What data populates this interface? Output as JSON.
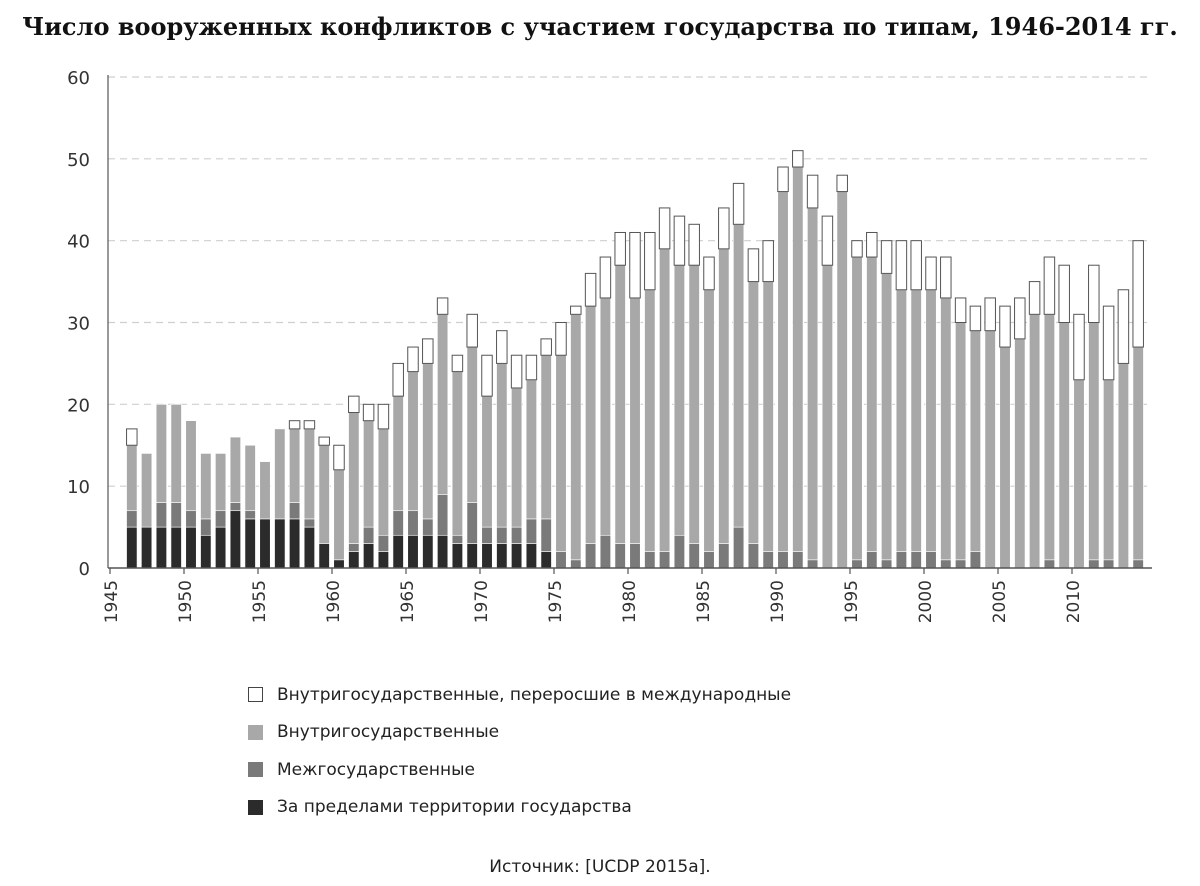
{
  "chart_data": {
    "type": "bar",
    "stacked": true,
    "title": "Число вооруженных конфликтов с участием государства по типам, 1946-2014 гг.",
    "source": "Источник: [UCDP 2015a].",
    "ylim": [
      0,
      60
    ],
    "yticks": [
      0,
      10,
      20,
      30,
      40,
      50,
      60
    ],
    "xlim": [
      1945,
      2014
    ],
    "xticks": [
      1945,
      1950,
      1955,
      1960,
      1965,
      1970,
      1975,
      1980,
      1985,
      1990,
      1995,
      2000,
      2005,
      2010
    ],
    "grid": true,
    "legend_position": "bottom",
    "x": [
      1946,
      1947,
      1948,
      1949,
      1950,
      1951,
      1952,
      1953,
      1954,
      1955,
      1956,
      1957,
      1958,
      1959,
      1960,
      1961,
      1962,
      1963,
      1964,
      1965,
      1966,
      1967,
      1968,
      1969,
      1970,
      1971,
      1972,
      1973,
      1974,
      1975,
      1976,
      1977,
      1978,
      1979,
      1980,
      1981,
      1982,
      1983,
      1984,
      1985,
      1986,
      1987,
      1988,
      1989,
      1990,
      1991,
      1992,
      1993,
      1994,
      1995,
      1996,
      1997,
      1998,
      1999,
      2000,
      2001,
      2002,
      2003,
      2004,
      2005,
      2006,
      2007,
      2008,
      2009,
      2010,
      2011,
      2012,
      2013,
      2014
    ],
    "series": [
      {
        "name": "За пределами территории государства",
        "color": "#2b2b2b",
        "values": [
          5,
          5,
          5,
          5,
          5,
          4,
          5,
          7,
          6,
          6,
          6,
          6,
          5,
          3,
          1,
          2,
          3,
          2,
          4,
          4,
          4,
          4,
          3,
          3,
          3,
          3,
          3,
          3,
          2,
          0,
          0,
          0,
          0,
          0,
          0,
          0,
          0,
          0,
          0,
          0,
          0,
          0,
          0,
          0,
          0,
          0,
          0,
          0,
          0,
          0,
          0,
          0,
          0,
          0,
          0,
          0,
          0,
          0,
          0,
          0,
          0,
          0,
          0,
          0,
          0,
          0,
          0,
          0,
          0
        ]
      },
      {
        "name": "Межгосударственные",
        "color": "#7a7a7a",
        "values": [
          2,
          0,
          3,
          3,
          2,
          2,
          2,
          1,
          1,
          0,
          0,
          2,
          1,
          0,
          0,
          1,
          2,
          2,
          3,
          3,
          2,
          5,
          1,
          5,
          2,
          2,
          2,
          3,
          4,
          2,
          1,
          3,
          4,
          3,
          3,
          2,
          2,
          4,
          3,
          2,
          3,
          5,
          3,
          2,
          2,
          2,
          1,
          0,
          0,
          1,
          2,
          1,
          2,
          2,
          2,
          1,
          1,
          2,
          0,
          0,
          0,
          0,
          1,
          0,
          0,
          1,
          1,
          0,
          1
        ]
      },
      {
        "name": "Внутригосударственные",
        "color": "#a8a8a8",
        "values": [
          8,
          9,
          12,
          12,
          11,
          8,
          7,
          8,
          8,
          7,
          11,
          9,
          11,
          12,
          11,
          16,
          13,
          13,
          14,
          17,
          19,
          22,
          20,
          19,
          16,
          20,
          17,
          17,
          20,
          24,
          30,
          29,
          29,
          34,
          30,
          32,
          37,
          33,
          34,
          32,
          36,
          37,
          32,
          33,
          44,
          47,
          43,
          37,
          46,
          37,
          36,
          35,
          32,
          32,
          32,
          32,
          29,
          27,
          29,
          27,
          28,
          31,
          30,
          30,
          23,
          29,
          22,
          25,
          26
        ]
      },
      {
        "name": "Внутригосударственные, переросшие в международные",
        "color": "#ffffff",
        "values": [
          2,
          0,
          0,
          0,
          0,
          0,
          0,
          0,
          0,
          0,
          0,
          1,
          1,
          1,
          3,
          2,
          2,
          3,
          4,
          3,
          3,
          2,
          2,
          4,
          5,
          4,
          4,
          3,
          2,
          4,
          1,
          4,
          5,
          4,
          8,
          7,
          5,
          6,
          5,
          4,
          5,
          5,
          4,
          5,
          3,
          2,
          4,
          6,
          2,
          2,
          3,
          4,
          6,
          6,
          4,
          5,
          3,
          3,
          4,
          5,
          5,
          4,
          7,
          7,
          8,
          7,
          9,
          9,
          13
        ]
      }
    ],
    "legend_order": [
      3,
      2,
      1,
      0
    ]
  }
}
